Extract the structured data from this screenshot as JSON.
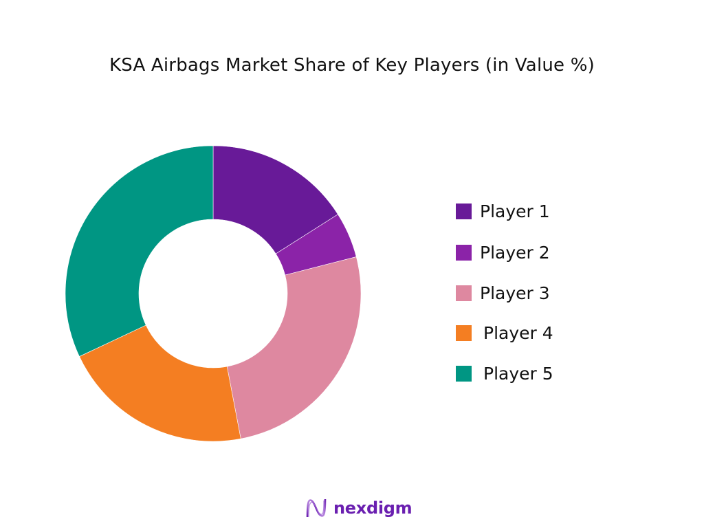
{
  "title": "KSA Airbags Market Share of Key Players (in Value %)",
  "chart_data": {
    "type": "pie",
    "donut": true,
    "title": "KSA Airbags Market Share of Key Players (in Value %)",
    "categories": [
      "Player 1",
      "Player 2",
      "Player 3",
      "Player 4",
      "Player 5"
    ],
    "values": [
      16,
      5,
      26,
      21,
      32
    ],
    "unit": "%",
    "colors": [
      "#681a98",
      "#8b23a8",
      "#de88a0",
      "#f47e22",
      "#009683"
    ],
    "start_angle": "12 o'clock, clockwise",
    "legend_position": "right",
    "data_labels": false
  },
  "legend": {
    "items": [
      {
        "label": "Player 1",
        "color": "#681a98"
      },
      {
        "label": "Player 2",
        "color": "#8b23a8"
      },
      {
        "label": "Player 3",
        "color": "#de88a0"
      },
      {
        "label": "Player 4",
        "color": "#f47e22"
      },
      {
        "label": "Player 5",
        "color": "#009683"
      }
    ]
  },
  "branding": {
    "logo_text": "nexdigm",
    "logo_icon": "nexdigm-wave-icon",
    "color": "#6a1fb0"
  }
}
